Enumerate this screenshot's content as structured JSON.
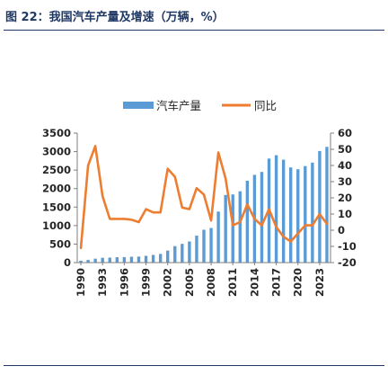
{
  "figure": {
    "title": "图 22：我国汽车产量及增速（万辆，%）"
  },
  "colors": {
    "bar": "#5b9bd5",
    "line": "#ed7d31",
    "title": "#1f3864",
    "text": "#262626"
  },
  "chart_data": {
    "type": "bar",
    "title": "",
    "xlabel": "",
    "ylabel": "",
    "legend_position": "top",
    "grid": false,
    "categories": [
      "1990",
      "1991",
      "1992",
      "1993",
      "1994",
      "1995",
      "1996",
      "1997",
      "1998",
      "1999",
      "2000",
      "2001",
      "2002",
      "2003",
      "2004",
      "2005",
      "2006",
      "2007",
      "2008",
      "2009",
      "2010",
      "2011",
      "2012",
      "2013",
      "2014",
      "2015",
      "2016",
      "2017",
      "2018",
      "2019",
      "2020",
      "2021",
      "2022",
      "2023",
      "2024"
    ],
    "x_tick_labels": [
      "1990",
      "1993",
      "1996",
      "1999",
      "2002",
      "2005",
      "2008",
      "2011",
      "2014",
      "2017",
      "2020",
      "2023"
    ],
    "ylim_left": [
      0,
      3500
    ],
    "yticks_left": [
      0,
      500,
      1000,
      1500,
      2000,
      2500,
      3000,
      3500
    ],
    "ylim_right": [
      -20,
      60
    ],
    "yticks_right": [
      -20,
      -10,
      0,
      10,
      20,
      30,
      40,
      50,
      60
    ],
    "series": [
      {
        "name": "汽车产量",
        "type": "bar",
        "axis": "left",
        "values": [
          51,
          71,
          106,
          130,
          135,
          145,
          148,
          158,
          163,
          183,
          207,
          234,
          325,
          444,
          507,
          571,
          728,
          888,
          935,
          1379,
          1827,
          1842,
          1927,
          2212,
          2372,
          2450,
          2812,
          2902,
          2781,
          2572,
          2523,
          2608,
          2702,
          3016,
          3128
        ]
      },
      {
        "name": "同比",
        "type": "line",
        "axis": "right",
        "values": [
          -11,
          40,
          52,
          21,
          7,
          7,
          7,
          6.5,
          5,
          13,
          11,
          11,
          38,
          33,
          14,
          13,
          26,
          22,
          6,
          48,
          32,
          3,
          5,
          16,
          7,
          3,
          13,
          2,
          -4,
          -7,
          -2,
          3,
          3,
          10,
          4
        ]
      }
    ]
  }
}
